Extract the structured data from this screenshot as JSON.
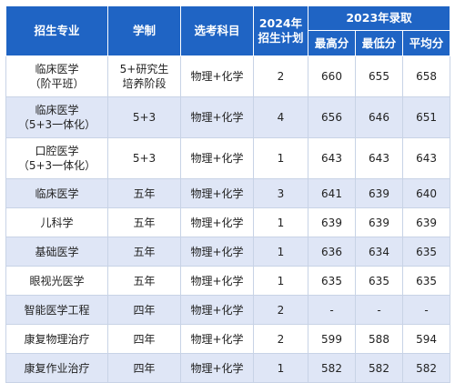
{
  "header": {
    "major": "招生专业",
    "length": "学制",
    "subjects": "选考科目",
    "plan_2024_line1": "2024年",
    "plan_2024_line2": "招生计划",
    "admission_2023": "2023年录取",
    "max_score": "最高分",
    "min_score": "最低分",
    "avg_score": "平均分"
  },
  "rows": [
    {
      "major_line1": "临床医学",
      "major_line2": "（阶平班）",
      "length_line1": "5+研究生",
      "length_line2": "培养阶段",
      "subjects": "物理+化学",
      "plan": "2",
      "max": "660",
      "min": "655",
      "avg": "658"
    },
    {
      "major_line1": "临床医学",
      "major_line2": "（5+3一体化）",
      "length": "5+3",
      "subjects": "物理+化学",
      "plan": "4",
      "max": "656",
      "min": "646",
      "avg": "651"
    },
    {
      "major_line1": "口腔医学",
      "major_line2": "（5+3一体化）",
      "length": "5+3",
      "subjects": "物理+化学",
      "plan": "1",
      "max": "643",
      "min": "643",
      "avg": "643"
    },
    {
      "major": "临床医学",
      "length": "五年",
      "subjects": "物理+化学",
      "plan": "3",
      "max": "641",
      "min": "639",
      "avg": "640"
    },
    {
      "major": "儿科学",
      "length": "五年",
      "subjects": "物理+化学",
      "plan": "1",
      "max": "639",
      "min": "639",
      "avg": "639"
    },
    {
      "major": "基础医学",
      "length": "五年",
      "subjects": "物理+化学",
      "plan": "1",
      "max": "636",
      "min": "634",
      "avg": "635"
    },
    {
      "major": "眼视光医学",
      "length": "五年",
      "subjects": "物理+化学",
      "plan": "1",
      "max": "635",
      "min": "635",
      "avg": "635"
    },
    {
      "major": "智能医学工程",
      "length": "四年",
      "subjects": "物理+化学",
      "plan": "2",
      "max": "-",
      "min": "-",
      "avg": "-"
    },
    {
      "major": "康复物理治疗",
      "length": "四年",
      "subjects": "物理+化学",
      "plan": "2",
      "max": "599",
      "min": "588",
      "avg": "594"
    },
    {
      "major": "康复作业治疗",
      "length": "四年",
      "subjects": "物理+化学",
      "plan": "1",
      "max": "582",
      "min": "582",
      "avg": "582"
    }
  ],
  "colors": {
    "header_bg": "#1f64c4",
    "row_shade": "#dfe6f6"
  }
}
